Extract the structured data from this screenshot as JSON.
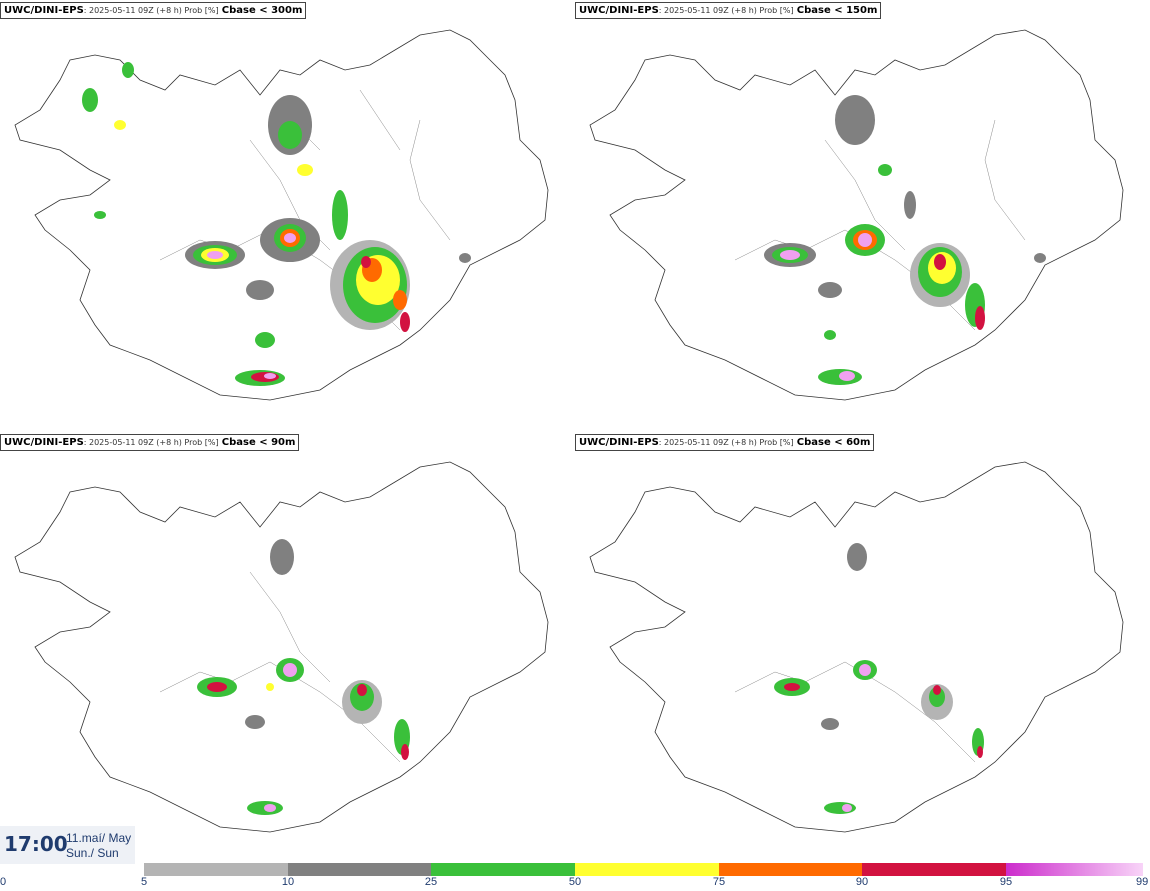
{
  "panels": [
    {
      "model": "UWC/DINI-EPS",
      "sub": ": 2025-05-11 09Z (+8 h) Prob [%]",
      "variable": "Cbase < 300m"
    },
    {
      "model": "UWC/DINI-EPS",
      "sub": ": 2025-05-11 09Z (+8 h) Prob [%]",
      "variable": "Cbase < 150m"
    },
    {
      "model": "UWC/DINI-EPS",
      "sub": ": 2025-05-11 09Z (+8 h) Prob [%]",
      "variable": "Cbase < 90m"
    },
    {
      "model": "UWC/DINI-EPS",
      "sub": ": 2025-05-11 09Z (+8 h) Prob [%]",
      "variable": "Cbase < 60m"
    }
  ],
  "time": {
    "clock": "17:00",
    "date_line1": "11.maí/ May",
    "date_line2": "Sun./ Sun"
  },
  "legend": {
    "ticks": [
      "0",
      "5",
      "10",
      "25",
      "50",
      "75",
      "90",
      "95",
      "99"
    ],
    "bins": [
      {
        "from": 5,
        "to": 10,
        "color": "#b4b4b4"
      },
      {
        "from": 10,
        "to": 25,
        "color": "#808080"
      },
      {
        "from": 25,
        "to": 50,
        "color": "#3ac03a"
      },
      {
        "from": 50,
        "to": 75,
        "color": "#ffff30"
      },
      {
        "from": 75,
        "to": 90,
        "color": "#ff6a00"
      },
      {
        "from": 90,
        "to": 95,
        "color": "#d21240"
      },
      {
        "from": 95,
        "to": 99,
        "color": "#cc2ccc",
        "gradient_to": "#f8d4f8"
      }
    ]
  }
}
